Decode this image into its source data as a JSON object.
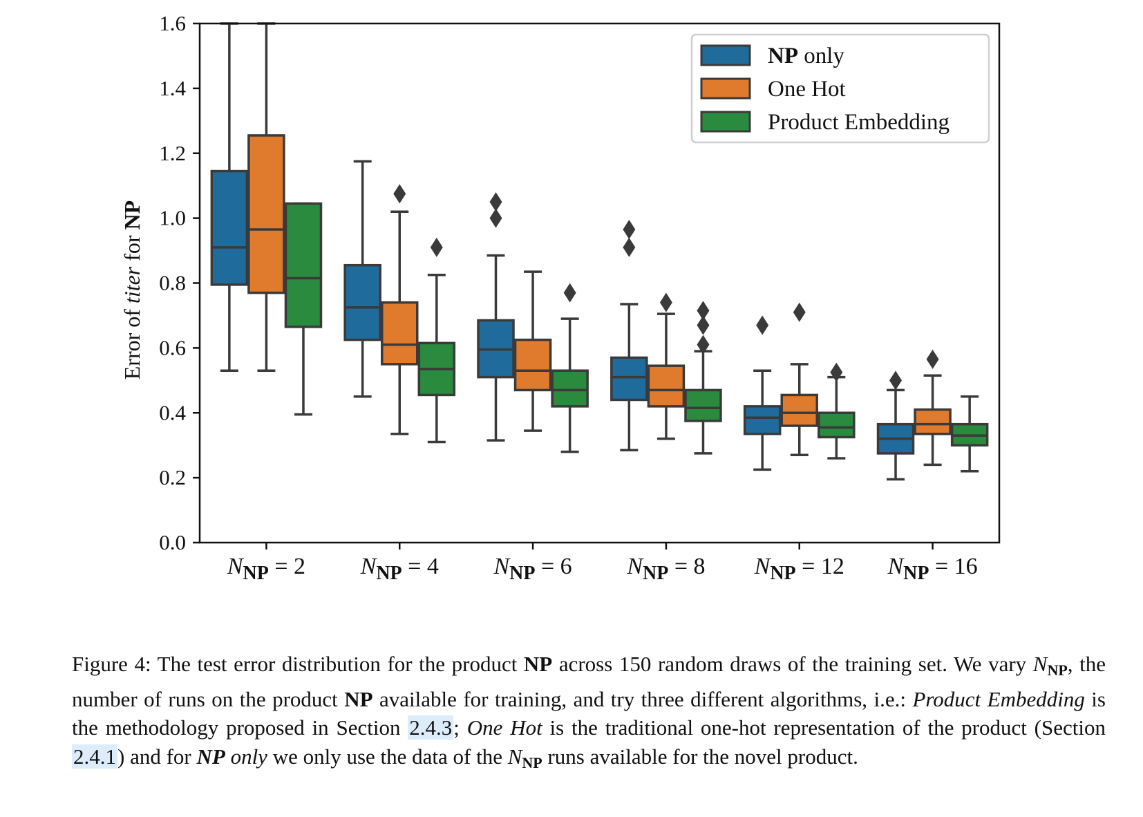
{
  "chart_data": {
    "type": "box",
    "ylabel": {
      "prefix": "Error of ",
      "italic": "titer",
      "middle": " for ",
      "bold": "NP"
    },
    "ylim": [
      0.0,
      1.6
    ],
    "yticks": [
      "0.0",
      "0.2",
      "0.4",
      "0.6",
      "0.8",
      "1.0",
      "1.2",
      "1.4",
      "1.6"
    ],
    "categories": [
      {
        "label": "N",
        "sub": "NP",
        "eq": " = 2"
      },
      {
        "label": "N",
        "sub": "NP",
        "eq": " = 4"
      },
      {
        "label": "N",
        "sub": "NP",
        "eq": " = 6"
      },
      {
        "label": "N",
        "sub": "NP",
        "eq": " = 8"
      },
      {
        "label": "N",
        "sub": "NP",
        "eq": " = 12"
      },
      {
        "label": "N",
        "sub": "NP",
        "eq": " = 16"
      }
    ],
    "legend": {
      "position": "top-right"
    },
    "series": [
      {
        "name": "NP only",
        "name_bold": "NP",
        "name_rest": " only",
        "color": "#1f6c9c",
        "boxes": [
          {
            "whislo": 0.53,
            "q1": 0.795,
            "med": 0.91,
            "q3": 1.145,
            "whishi": 1.6,
            "fliers": []
          },
          {
            "whislo": 0.45,
            "q1": 0.625,
            "med": 0.725,
            "q3": 0.855,
            "whishi": 1.175,
            "fliers": []
          },
          {
            "whislo": 0.315,
            "q1": 0.51,
            "med": 0.595,
            "q3": 0.685,
            "whishi": 0.885,
            "fliers": [
              1.0,
              1.05
            ]
          },
          {
            "whislo": 0.285,
            "q1": 0.44,
            "med": 0.51,
            "q3": 0.57,
            "whishi": 0.735,
            "fliers": [
              0.91,
              0.965
            ]
          },
          {
            "whislo": 0.225,
            "q1": 0.335,
            "med": 0.385,
            "q3": 0.42,
            "whishi": 0.53,
            "fliers": [
              0.67
            ]
          },
          {
            "whislo": 0.195,
            "q1": 0.275,
            "med": 0.32,
            "q3": 0.365,
            "whishi": 0.47,
            "fliers": [
              0.5
            ]
          }
        ]
      },
      {
        "name": "One Hot",
        "color": "#e07b2e",
        "boxes": [
          {
            "whislo": 0.53,
            "q1": 0.77,
            "med": 0.965,
            "q3": 1.255,
            "whishi": 1.6,
            "fliers": []
          },
          {
            "whislo": 0.335,
            "q1": 0.55,
            "med": 0.61,
            "q3": 0.74,
            "whishi": 1.02,
            "fliers": [
              1.075
            ]
          },
          {
            "whislo": 0.345,
            "q1": 0.47,
            "med": 0.53,
            "q3": 0.625,
            "whishi": 0.835,
            "fliers": []
          },
          {
            "whislo": 0.32,
            "q1": 0.42,
            "med": 0.47,
            "q3": 0.545,
            "whishi": 0.705,
            "fliers": [
              0.74
            ]
          },
          {
            "whislo": 0.27,
            "q1": 0.36,
            "med": 0.4,
            "q3": 0.455,
            "whishi": 0.55,
            "fliers": [
              0.71
            ]
          },
          {
            "whislo": 0.24,
            "q1": 0.335,
            "med": 0.365,
            "q3": 0.41,
            "whishi": 0.515,
            "fliers": [
              0.565
            ]
          }
        ]
      },
      {
        "name": "Product Embedding",
        "color": "#2a8a3e",
        "boxes": [
          {
            "whislo": 0.395,
            "q1": 0.665,
            "med": 0.815,
            "q3": 1.045,
            "whishi": 1.045,
            "fliers": []
          },
          {
            "whislo": 0.31,
            "q1": 0.455,
            "med": 0.535,
            "q3": 0.615,
            "whishi": 0.825,
            "fliers": [
              0.91
            ]
          },
          {
            "whislo": 0.28,
            "q1": 0.42,
            "med": 0.47,
            "q3": 0.53,
            "whishi": 0.69,
            "fliers": [
              0.77
            ]
          },
          {
            "whislo": 0.275,
            "q1": 0.375,
            "med": 0.415,
            "q3": 0.47,
            "whishi": 0.59,
            "fliers": [
              0.61,
              0.67,
              0.715
            ]
          },
          {
            "whislo": 0.26,
            "q1": 0.325,
            "med": 0.355,
            "q3": 0.4,
            "whishi": 0.51,
            "fliers": [
              0.525
            ]
          },
          {
            "whislo": 0.22,
            "q1": 0.3,
            "med": 0.33,
            "q3": 0.365,
            "whishi": 0.45,
            "fliers": []
          }
        ]
      }
    ]
  },
  "caption": {
    "fig": "Figure 4:",
    "t1": " The test error distribution for the product ",
    "np1": "NP",
    "t2": " across 150 random draws of the training set. We vary ",
    "nvar1": "N",
    "nsub1": "NP",
    "t3": ", the number of runs on the product ",
    "np2": "NP",
    "t4": " available for training, and try three different algorithms, i.e.: ",
    "pe": "Product Embedding",
    "t5": " is the methodology proposed in Section ",
    "ref1": "2.4.3",
    "t6": "; ",
    "oh": "One Hot",
    "t7": " is the traditional one-hot representation of the product (Section ",
    "ref2": "2.4.1",
    "t8": ") and for ",
    "nponly_b": "NP",
    "nponly_i": " only",
    "t9": " we only use the data of the ",
    "nvar2": "N",
    "nsub2": "NP",
    "t10": " runs available for the novel product."
  }
}
